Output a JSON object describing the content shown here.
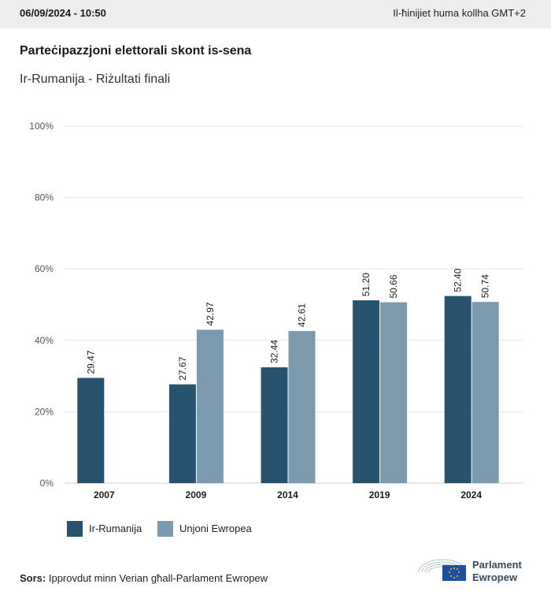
{
  "header": {
    "datetime": "06/09/2024 - 10:50",
    "timezone_note": "Il-ħinijiet huma kollha GMT+2"
  },
  "chart_data": {
    "type": "bar",
    "title": "Parteċipazzjoni elettorali skont is-sena",
    "subtitle": "Ir-Rumanija - Riżultati finali",
    "categories": [
      "2007",
      "2009",
      "2014",
      "2019",
      "2024"
    ],
    "series": [
      {
        "name": "Ir-Rumanija",
        "color": "#27536f",
        "values": [
          29.47,
          27.67,
          32.44,
          51.2,
          52.4
        ]
      },
      {
        "name": "Unjoni Ewropea",
        "color": "#7b9aae",
        "values": [
          null,
          42.97,
          42.61,
          50.66,
          50.74
        ]
      }
    ],
    "value_labels": [
      [
        "29.47",
        "27.67",
        "32.44",
        "51.20",
        "52.40"
      ],
      [
        "",
        "42.97",
        "42.61",
        "50.66",
        "50.74"
      ]
    ],
    "ylim": [
      0,
      100
    ],
    "yticks": [
      "0%",
      "20%",
      "40%",
      "60%",
      "80%",
      "100%"
    ],
    "grid": true,
    "legend_position": "bottom-left"
  },
  "source": {
    "label": "Sors:",
    "text": " Ipprovdut minn Verian għall-Parlament Ewropew"
  },
  "logo": {
    "line1": "Parlament",
    "line2": "Ewropew"
  }
}
